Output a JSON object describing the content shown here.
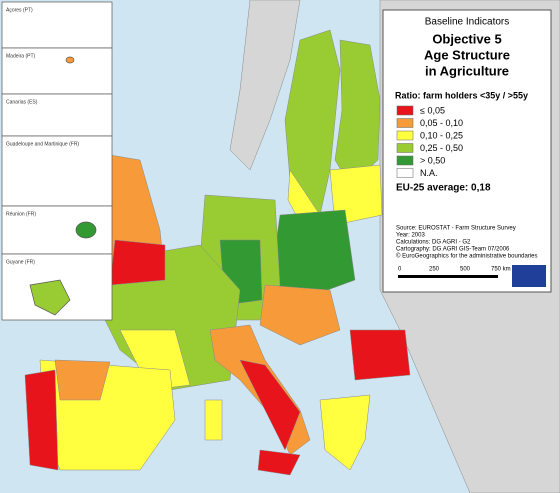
{
  "title": {
    "kicker": "Baseline Indicators",
    "lines": [
      "Objective 5",
      "Age Structure",
      "in Agriculture"
    ]
  },
  "legend": {
    "title": "Ratio: farm holders  <35y / >55y",
    "items": [
      {
        "label": "≤ 0,05",
        "color": "#e8141b"
      },
      {
        "label": "0,05 - 0,10",
        "color": "#f79a3a"
      },
      {
        "label": "0,10 - 0,25",
        "color": "#ffff40"
      },
      {
        "label": "0,25 - 0,50",
        "color": "#99cc33"
      },
      {
        "label": "> 0,50",
        "color": "#339933"
      },
      {
        "label": "N.A.",
        "color": "#ffffff"
      }
    ],
    "average": "EU-25 average: 0,18"
  },
  "source": [
    "Source: EUROSTAT - Farm Structure Survey",
    "Year: 2003",
    "Calculations: DG AGRI - G2",
    "Cartography: DG AGRI GIS-Team 07/2006",
    "© EuroGeographics for the administrative boundaries"
  ],
  "scale": [
    "0",
    "250",
    "500",
    "750 km"
  ],
  "insets": [
    "Açores (PT)",
    "Madeira (PT)",
    "Canarias (ES)",
    "Guadeloupe and Martinique (FR)",
    "Réunion (FR)",
    "Guyane (FR)"
  ]
}
